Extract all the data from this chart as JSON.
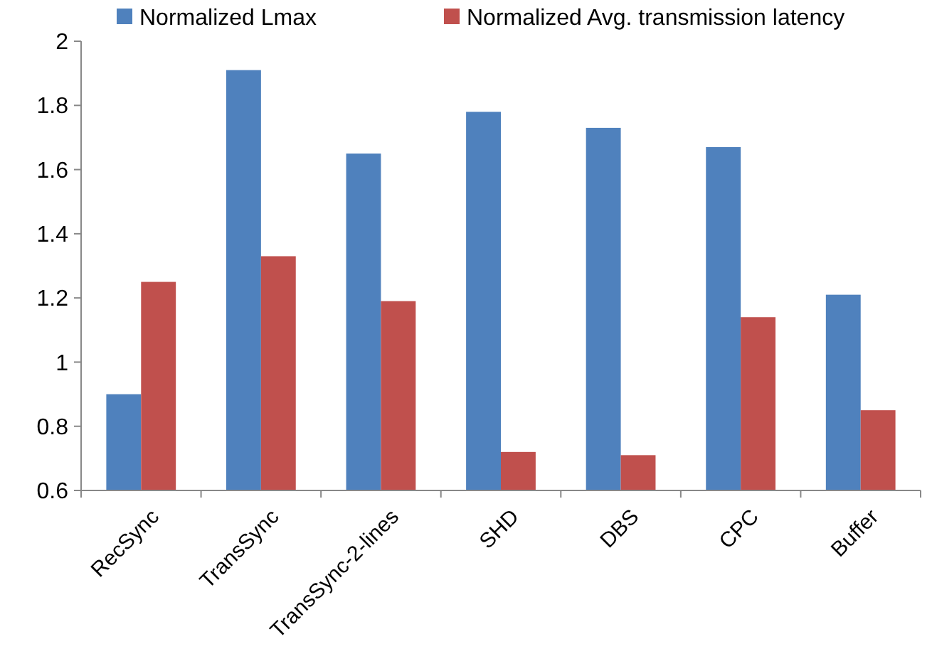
{
  "chart_data": {
    "type": "bar",
    "categories": [
      "RecSync",
      "TransSync",
      "TransSync-2-lines",
      "SHD",
      "DBS",
      "CPC",
      "Buffer"
    ],
    "series": [
      {
        "name": "Normalized Lmax",
        "color": "#4f81bd",
        "values": [
          0.9,
          1.91,
          1.65,
          1.78,
          1.73,
          1.67,
          1.21
        ]
      },
      {
        "name": "Normalized Avg. transmission latency",
        "color": "#c0504d",
        "values": [
          1.25,
          1.33,
          1.19,
          0.72,
          0.71,
          1.14,
          0.85
        ]
      }
    ],
    "ylim": [
      0.6,
      2
    ],
    "yticks": [
      0.6,
      0.8,
      1,
      1.2,
      1.4,
      1.6,
      1.8,
      2
    ],
    "grid": false,
    "legend": "top"
  }
}
